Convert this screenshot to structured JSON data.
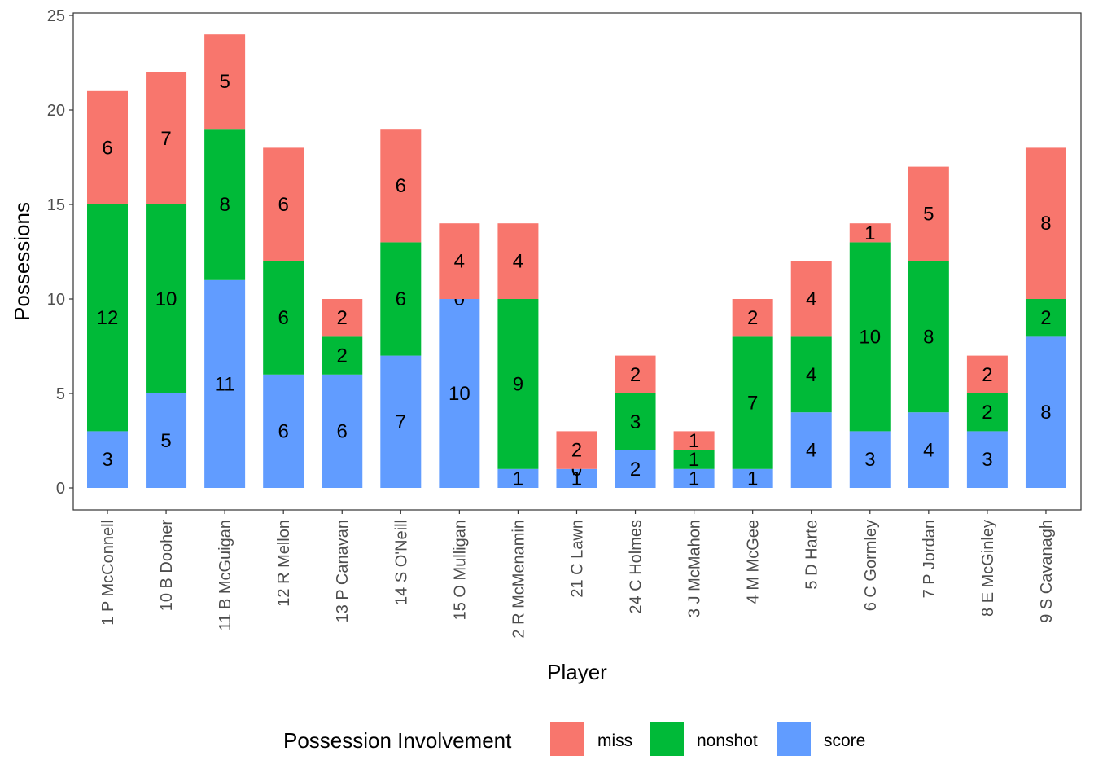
{
  "chart_data": {
    "type": "bar",
    "stacked": true,
    "xlabel": "Player",
    "ylabel": "Possessions",
    "ylim": [
      0,
      25
    ],
    "yticks": [
      0,
      5,
      10,
      15,
      20,
      25
    ],
    "grid": false,
    "legend_position": "bottom",
    "legend_title": "Possession Involvement",
    "categories": [
      "1 P McConnell",
      "10 B Dooher",
      "11 B McGuigan",
      "12 R Mellon",
      "13 P Canavan",
      "14 S O'Neill",
      "15 O Mulligan",
      "2 R McMenamin",
      "21 C Lawn",
      "24 C Holmes",
      "3 J McMahon",
      "4 M McGee",
      "5 D Harte",
      "6 C Gormley",
      "7 P Jordan",
      "8 E McGinley",
      "9 S Cavanagh"
    ],
    "series": [
      {
        "name": "score",
        "color": "#619CFF",
        "values": [
          3,
          5,
          11,
          6,
          6,
          7,
          10,
          1,
          1,
          2,
          1,
          1,
          4,
          3,
          4,
          3,
          8
        ]
      },
      {
        "name": "nonshot",
        "color": "#00BA38",
        "values": [
          12,
          10,
          8,
          6,
          2,
          6,
          0,
          9,
          0,
          3,
          1,
          7,
          4,
          10,
          8,
          2,
          2
        ]
      },
      {
        "name": "miss",
        "color": "#F8766D",
        "values": [
          6,
          7,
          5,
          6,
          2,
          6,
          4,
          4,
          2,
          2,
          1,
          2,
          4,
          1,
          5,
          2,
          8
        ]
      }
    ],
    "legend_order": [
      "miss",
      "nonshot",
      "score"
    ]
  }
}
